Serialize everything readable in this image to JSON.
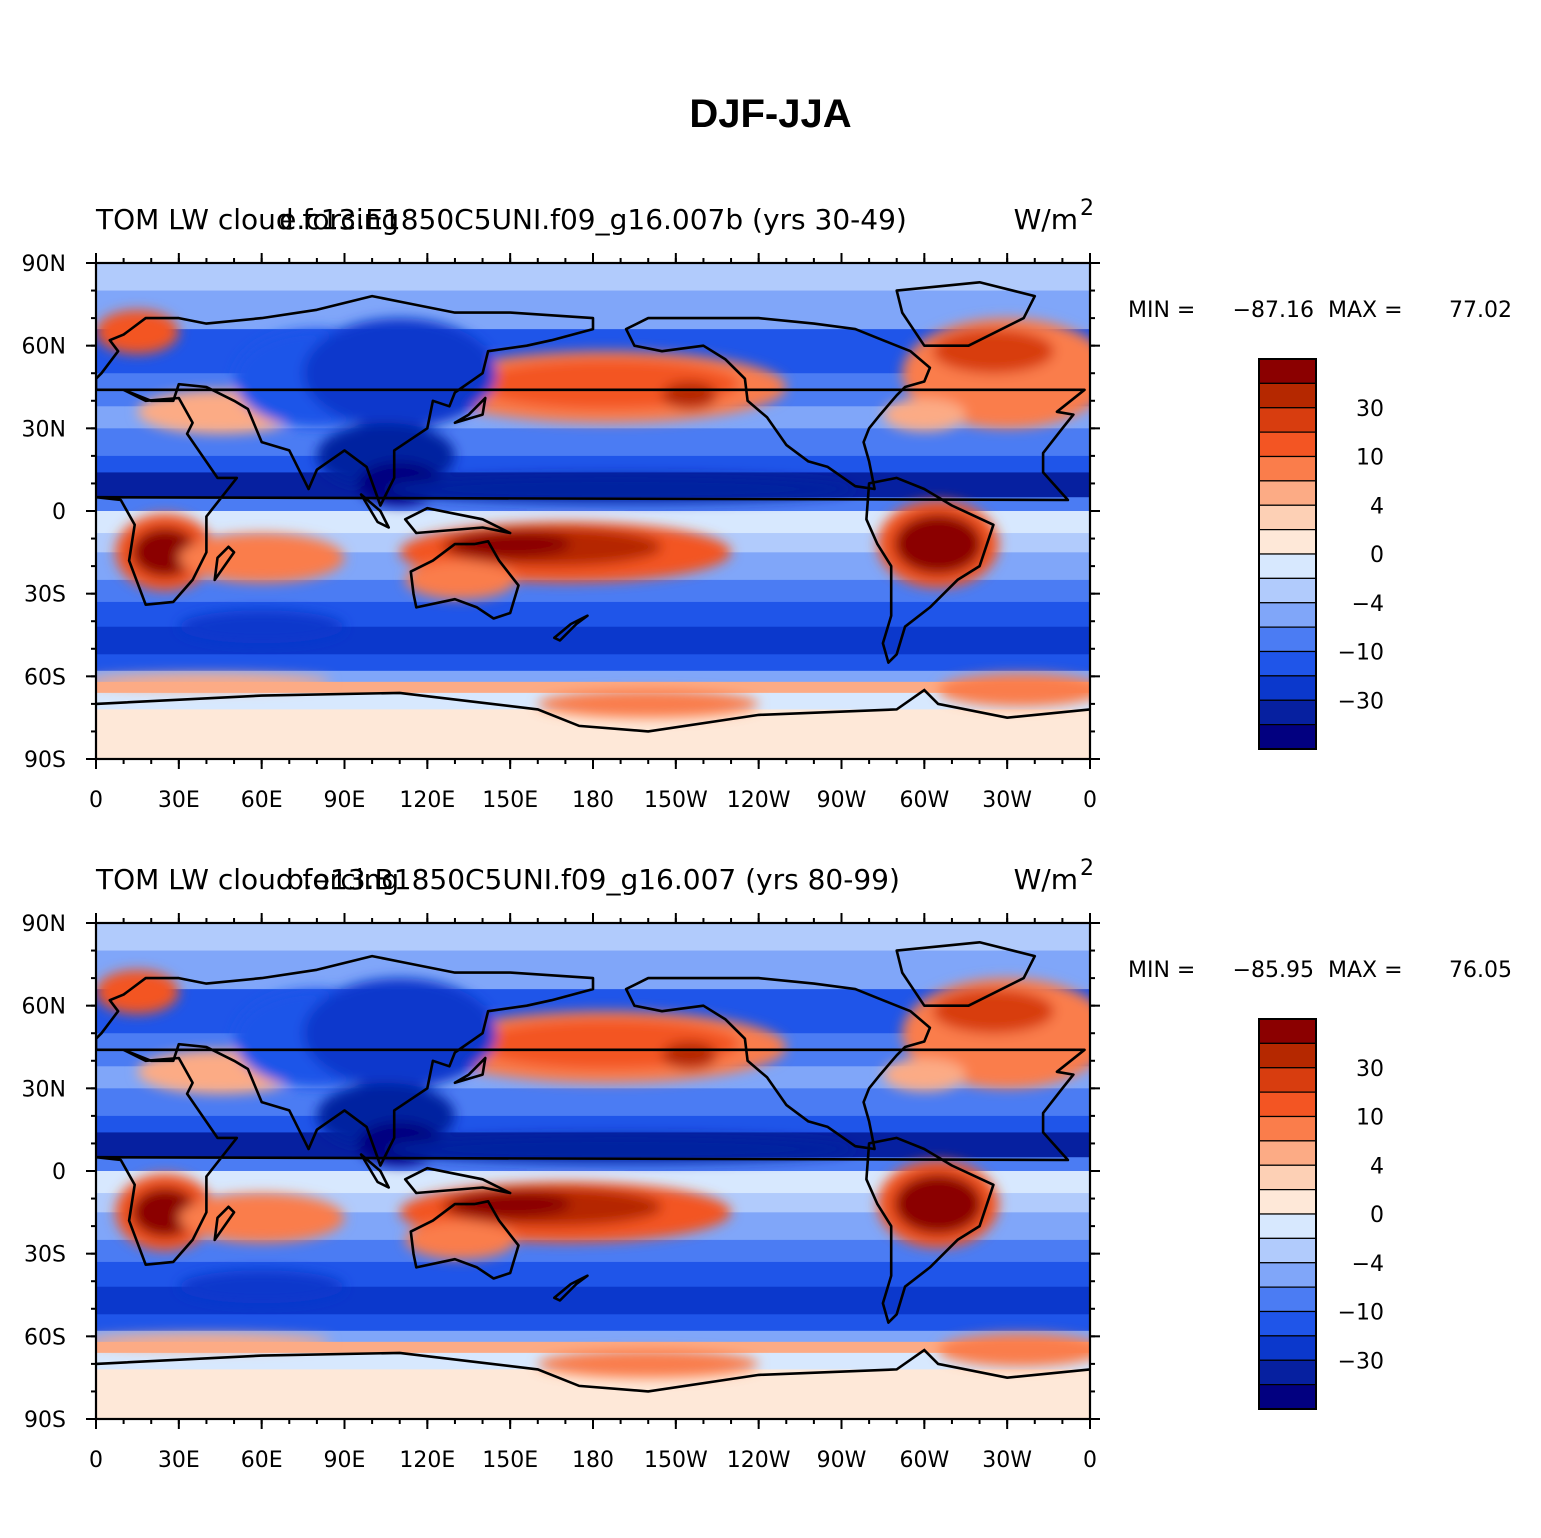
{
  "figure": {
    "title": "DJF-JJA"
  },
  "panels": [
    {
      "left_title": "TOM LW cloud forcing",
      "center_title": "e.c13.E1850C5UNI.f09_g16.007b (yrs 30-49)",
      "units": "W/m",
      "units_sup": "2",
      "min_label": "MIN = ",
      "min_value": "−87.16",
      "max_label": "MAX = ",
      "max_value": "77.02"
    },
    {
      "left_title": "TOM LW cloud forcing",
      "center_title": "b.e13.B1850C5UNI.f09_g16.007 (yrs 80-99)",
      "units": "W/m",
      "units_sup": "2",
      "min_label": "MIN = ",
      "min_value": "−85.95",
      "max_label": "MAX = ",
      "max_value": "76.05"
    }
  ],
  "axes": {
    "lon_ticks": [
      "0",
      "30E",
      "60E",
      "90E",
      "120E",
      "150E",
      "180",
      "150W",
      "120W",
      "90W",
      "60W",
      "30W",
      "0"
    ],
    "lat_ticks": [
      "90N",
      "60N",
      "30N",
      "0",
      "30S",
      "60S",
      "90S"
    ]
  },
  "colorbar": {
    "colors": [
      "#8b0000",
      "#b52800",
      "#d83d0f",
      "#f35523",
      "#fa7d4b",
      "#fcab85",
      "#fdd0b5",
      "#fee8d8",
      "#d7e8fe",
      "#b1cbfc",
      "#80a6f9",
      "#4b7cf3",
      "#1f55e9",
      "#0b38cc",
      "#0620a0",
      "#020080"
    ],
    "labels": [
      "30",
      "10",
      "4",
      "0",
      "−4",
      "−10",
      "−30"
    ]
  },
  "map_semantics": {
    "projection": "cylindrical equidistant",
    "longitude_range": [
      "0",
      "360"
    ],
    "latitude_range": [
      "90S",
      "90N"
    ],
    "field": "seasonal difference, shaded contours"
  }
}
